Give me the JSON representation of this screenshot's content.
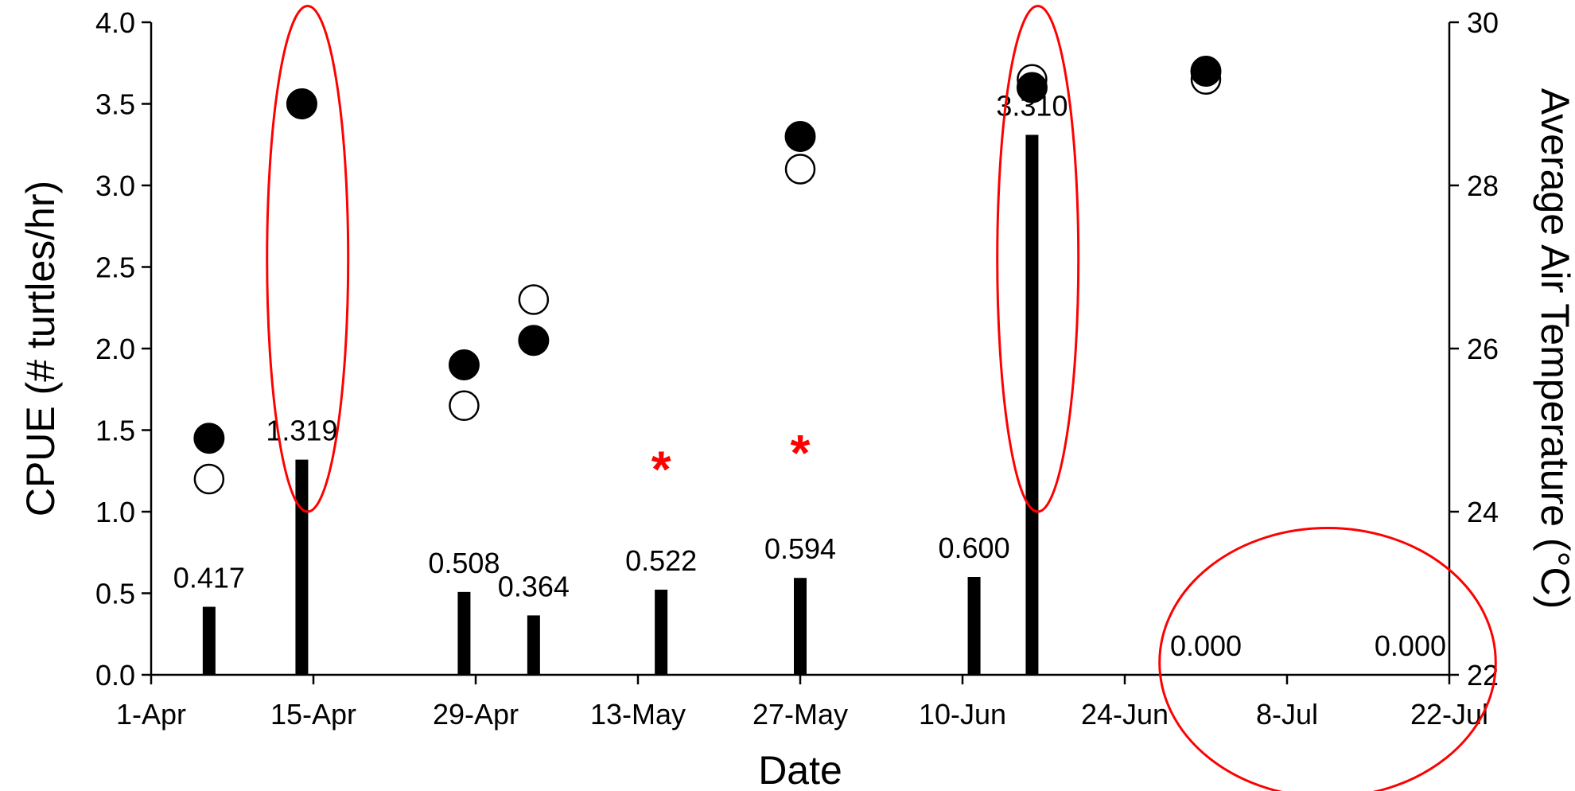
{
  "chart_data": {
    "type": "bar",
    "xlabel": "Date",
    "ylabel": "CPUE (# turtles/hr)",
    "y2label": "Average Air Temperature (°C)",
    "x_range": [
      "1-Apr",
      "22-Jul"
    ],
    "x_ticks": [
      "1-Apr",
      "15-Apr",
      "29-Apr",
      "13-May",
      "27-May",
      "10-Jun",
      "24-Jun",
      "8-Jul",
      "22-Jul"
    ],
    "ylim": [
      0,
      4.0
    ],
    "y_ticks": [
      "0.0",
      "0.5",
      "1.0",
      "1.5",
      "2.0",
      "2.5",
      "3.0",
      "3.5",
      "4.0"
    ],
    "y2lim": [
      22,
      30
    ],
    "y2_ticks": [
      "22",
      "24",
      "26",
      "28",
      "30"
    ],
    "grid": false,
    "colors": {
      "bars": "#000000",
      "annotation": "#ff0000"
    },
    "series": [
      {
        "kind": "bar",
        "axis": "left",
        "points": [
          {
            "date": "6-Apr",
            "value": 0.417,
            "label": "0.417"
          },
          {
            "date": "14-Apr",
            "value": 1.319,
            "label": "1.319"
          },
          {
            "date": "28-Apr",
            "value": 0.508,
            "label": "0.508"
          },
          {
            "date": "4-May",
            "value": 0.364,
            "label": "0.364"
          },
          {
            "date": "15-May",
            "value": 0.522,
            "label": "0.522"
          },
          {
            "date": "27-May",
            "value": 0.594,
            "label": "0.594"
          },
          {
            "date": "11-Jun",
            "value": 0.6,
            "label": "0.600"
          },
          {
            "date": "16-Jun",
            "value": 3.31,
            "label": "3.310"
          },
          {
            "date": "1-Jul",
            "value": 0.0,
            "label": "0.000"
          },
          {
            "date": "22-Jul",
            "value": 0.0,
            "label": "0.000"
          }
        ]
      },
      {
        "kind": "scatter",
        "marker": "filled-circle",
        "axis": "right",
        "points": [
          {
            "date": "6-Apr",
            "value": 24.9
          },
          {
            "date": "14-Apr",
            "value": 29.0
          },
          {
            "date": "28-Apr",
            "value": 25.8
          },
          {
            "date": "4-May",
            "value": 26.1
          },
          {
            "date": "27-May",
            "value": 28.6
          },
          {
            "date": "16-Jun",
            "value": 29.2
          },
          {
            "date": "1-Jul",
            "value": 29.4
          }
        ]
      },
      {
        "kind": "scatter",
        "marker": "open-circle",
        "axis": "right",
        "points": [
          {
            "date": "6-Apr",
            "value": 24.4
          },
          {
            "date": "14-Apr",
            "value": 29.0
          },
          {
            "date": "28-Apr",
            "value": 25.3
          },
          {
            "date": "4-May",
            "value": 26.6
          },
          {
            "date": "27-May",
            "value": 28.2
          },
          {
            "date": "16-Jun",
            "value": 29.3
          },
          {
            "date": "1-Jul",
            "value": 29.3
          }
        ]
      }
    ],
    "annotations": [
      {
        "type": "asterisk",
        "text": "*",
        "date": "15-May",
        "value": 1.28
      },
      {
        "type": "asterisk",
        "text": "*",
        "date": "27-May",
        "value": 1.38
      },
      {
        "type": "ellipse",
        "from_date": "11-Apr",
        "to_date": "18-Apr",
        "from_value": 1.0,
        "to_value": 4.1
      },
      {
        "type": "ellipse",
        "from_date": "13-Jun",
        "to_date": "20-Jun",
        "from_value": 1.0,
        "to_value": 4.1
      },
      {
        "type": "ellipse",
        "from_date": "27-Jun",
        "to_date": "26-Jul",
        "from_value": -0.75,
        "to_value": 0.9
      }
    ]
  }
}
